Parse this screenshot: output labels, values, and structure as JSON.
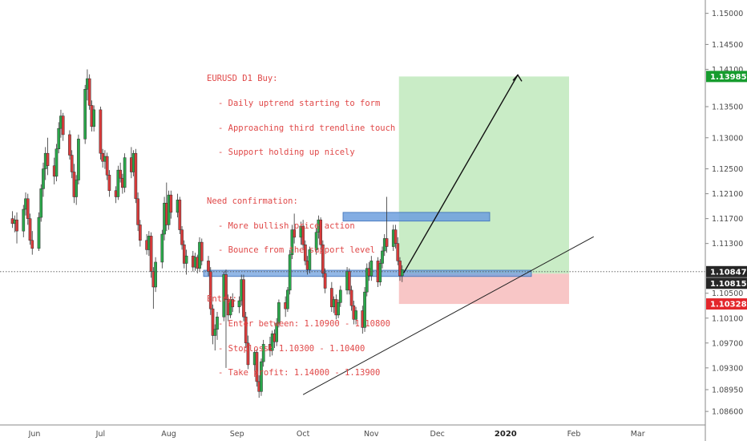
{
  "annotation": {
    "title": "EURUSD D1 Buy:",
    "points1": [
      "- Daily uptrend starting to form",
      "- Approaching third trendline touch",
      "- Support holding up nicely"
    ],
    "confirm_title": "Need confirmation:",
    "points2": [
      "- More bullish price action",
      "- Bounce from the support level"
    ],
    "entry_title": "Entry:",
    "points3": [
      "- Enter between: 1.10900 - 1.10800",
      "- Stoploss: 1.10300 - 1.10400",
      "- Take profit: 1.14000 - 1.13900"
    ]
  },
  "colors": {
    "up": "#2aa84a",
    "down": "#d93b3b",
    "annotation_text": "#e04848",
    "profit_zone": "#c9ecc6",
    "loss_zone": "#f8c6c6",
    "zone_box": "#6d9fde",
    "label_green": "#169c2e",
    "label_red": "#e3262b",
    "label_dark": "#262626"
  },
  "chart_data": {
    "type": "candlestick",
    "instrument": "EURUSD D1",
    "x_tick_labels": [
      "Jun",
      "Jul",
      "Aug",
      "Sep",
      "Oct",
      "Nov",
      "Dec",
      "2020",
      "Feb",
      "Mar"
    ],
    "y_tick_labels": [
      "1.15000",
      "1.14500",
      "1.14100",
      "1.13500",
      "1.13000",
      "1.12500",
      "1.12100",
      "1.11700",
      "1.11300",
      "1.10500",
      "1.10100",
      "1.09700",
      "1.09300",
      "1.08950",
      "1.08600"
    ],
    "ylim": [
      1.0855,
      1.1515
    ],
    "price_labels": [
      {
        "value": "1.13985",
        "price": 1.13985,
        "style": "green"
      },
      {
        "value": "1.10847",
        "price": 1.10847,
        "style": "dark"
      },
      {
        "value": "1.10815",
        "price": 1.10815,
        "style": "dark"
      },
      {
        "value": "1.10328",
        "price": 1.10328,
        "style": "red"
      }
    ],
    "current_price": 1.10847,
    "position": {
      "entry": 1.10815,
      "target": 1.13985,
      "stop": 1.10328
    },
    "resistance_zone": [
      1.1166,
      1.118
    ],
    "support_zone": [
      1.1077,
      1.1087
    ],
    "trendline": {
      "from": [
        "2019-10-01",
        1.0887
      ],
      "to": [
        "2020-02-10",
        1.1141
      ]
    },
    "grid": false,
    "candles": [
      [
        1.117,
        1.1182,
        1.1155,
        1.1162
      ],
      [
        1.1162,
        1.1175,
        1.1148,
        1.1168
      ],
      [
        1.1168,
        1.118,
        1.113,
        1.115
      ],
      [
        1.115,
        1.1192,
        1.114,
        1.1185
      ],
      [
        1.1185,
        1.1212,
        1.1175,
        1.1202
      ],
      [
        1.1202,
        1.121,
        1.116,
        1.117
      ],
      [
        1.117,
        1.1178,
        1.1128,
        1.1135
      ],
      [
        1.1135,
        1.115,
        1.1112,
        1.1122
      ],
      [
        1.1122,
        1.118,
        1.1118,
        1.1172
      ],
      [
        1.1172,
        1.1225,
        1.1165,
        1.1218
      ],
      [
        1.1218,
        1.126,
        1.1205,
        1.125
      ],
      [
        1.125,
        1.1285,
        1.1232,
        1.1275
      ],
      [
        1.1275,
        1.13,
        1.124,
        1.1255
      ],
      [
        1.1255,
        1.1268,
        1.1225,
        1.1238
      ],
      [
        1.1238,
        1.129,
        1.123,
        1.1282
      ],
      [
        1.1282,
        1.1325,
        1.1275,
        1.1315
      ],
      [
        1.1315,
        1.1345,
        1.13,
        1.1335
      ],
      [
        1.1335,
        1.134,
        1.1295,
        1.1305
      ],
      [
        1.1305,
        1.1312,
        1.1265,
        1.1272
      ],
      [
        1.1272,
        1.128,
        1.1235,
        1.1245
      ],
      [
        1.1245,
        1.1258,
        1.1195,
        1.1205
      ],
      [
        1.1205,
        1.124,
        1.1192,
        1.1232
      ],
      [
        1.1232,
        1.1305,
        1.1225,
        1.1298
      ],
      [
        1.1298,
        1.1385,
        1.129,
        1.1378
      ],
      [
        1.1378,
        1.141,
        1.136,
        1.1395
      ],
      [
        1.1395,
        1.1402,
        1.1345,
        1.1352
      ],
      [
        1.1352,
        1.136,
        1.131,
        1.1318
      ],
      [
        1.1318,
        1.1352,
        1.131,
        1.1345
      ],
      [
        1.1345,
        1.135,
        1.1265,
        1.1275
      ],
      [
        1.1275,
        1.1282,
        1.1252,
        1.1262
      ],
      [
        1.1262,
        1.128,
        1.125,
        1.127
      ],
      [
        1.127,
        1.1276,
        1.1232,
        1.124
      ],
      [
        1.124,
        1.1248,
        1.1205,
        1.1215
      ],
      [
        1.1215,
        1.1222,
        1.1195,
        1.1205
      ],
      [
        1.1205,
        1.1255,
        1.12,
        1.1248
      ],
      [
        1.1248,
        1.126,
        1.1228,
        1.1235
      ],
      [
        1.1235,
        1.1242,
        1.121,
        1.122
      ],
      [
        1.122,
        1.1275,
        1.1212,
        1.1268
      ],
      [
        1.1268,
        1.1285,
        1.1235,
        1.1245
      ],
      [
        1.1245,
        1.128,
        1.1238,
        1.1275
      ],
      [
        1.1275,
        1.1282,
        1.1195,
        1.1202
      ],
      [
        1.1202,
        1.1212,
        1.115,
        1.116
      ],
      [
        1.116,
        1.1168,
        1.1125,
        1.1135
      ],
      [
        1.1135,
        1.1145,
        1.1112,
        1.112
      ],
      [
        1.112,
        1.115,
        1.111,
        1.1142
      ],
      [
        1.1142,
        1.1148,
        1.1075,
        1.1085
      ],
      [
        1.1085,
        1.1092,
        1.1025,
        1.106
      ],
      [
        1.106,
        1.1108,
        1.1052,
        1.11
      ],
      [
        1.11,
        1.1152,
        1.109,
        1.1145
      ],
      [
        1.1145,
        1.1205,
        1.1135,
        1.1195
      ],
      [
        1.1195,
        1.1228,
        1.115,
        1.116
      ],
      [
        1.116,
        1.1215,
        1.1152,
        1.1208
      ],
      [
        1.1208,
        1.1215,
        1.117,
        1.118
      ],
      [
        1.118,
        1.121,
        1.1172,
        1.12
      ],
      [
        1.12,
        1.1205,
        1.1145,
        1.1152
      ],
      [
        1.1152,
        1.1158,
        1.112,
        1.1128
      ],
      [
        1.1128,
        1.1135,
        1.109,
        1.1098
      ],
      [
        1.1098,
        1.112,
        1.108,
        1.111
      ],
      [
        1.111,
        1.1118,
        1.1085,
        1.1092
      ],
      [
        1.1092,
        1.1115,
        1.1086,
        1.1108
      ],
      [
        1.1108,
        1.1112,
        1.1082,
        1.109
      ],
      [
        1.109,
        1.114,
        1.1085,
        1.1132
      ],
      [
        1.1132,
        1.1138,
        1.1095,
        1.1102
      ],
      [
        1.1102,
        1.111,
        1.1078,
        1.1085
      ],
      [
        1.1085,
        1.1092,
        1.1015,
        1.1025
      ],
      [
        1.1025,
        1.1032,
        1.0968,
        1.0982
      ],
      [
        1.0982,
        1.1,
        1.0958,
        1.0992
      ],
      [
        1.0992,
        1.102,
        1.0975,
        1.1012
      ],
      [
        1.1012,
        1.1085,
        1.1005,
        1.108
      ],
      [
        1.108,
        1.1088,
        1.093,
        1.104
      ],
      [
        1.104,
        1.1048,
        1.1005,
        1.1015
      ],
      [
        1.1015,
        1.1045,
        1.101,
        1.104
      ],
      [
        1.104,
        1.105,
        1.102,
        1.1028
      ],
      [
        1.1028,
        1.1045,
        1.1018,
        1.1038
      ],
      [
        1.1038,
        1.108,
        1.103,
        1.1072
      ],
      [
        1.1072,
        1.108,
        1.1005,
        1.1012
      ],
      [
        1.1012,
        1.102,
        1.0962,
        1.097
      ],
      [
        1.097,
        1.0982,
        1.0928,
        1.0935
      ],
      [
        1.0935,
        1.0962,
        1.0925,
        1.0955
      ],
      [
        1.0955,
        1.096,
        1.09,
        1.0908
      ],
      [
        1.0908,
        1.0918,
        1.0882,
        1.0892
      ],
      [
        1.0892,
        1.0945,
        1.0885,
        1.094
      ],
      [
        1.094,
        1.0975,
        1.0932,
        1.0968
      ],
      [
        1.0968,
        1.098,
        1.0948,
        1.0958
      ],
      [
        1.0958,
        1.099,
        1.095,
        1.0985
      ],
      [
        1.0985,
        1.0992,
        1.0962,
        1.0972
      ],
      [
        1.0972,
        1.101,
        1.0965,
        1.1002
      ],
      [
        1.1002,
        1.104,
        1.0995,
        1.1035
      ],
      [
        1.1035,
        1.1045,
        1.1012,
        1.1025
      ],
      [
        1.1025,
        1.106,
        1.102,
        1.1055
      ],
      [
        1.1055,
        1.112,
        1.1048,
        1.1112
      ],
      [
        1.1112,
        1.116,
        1.1105,
        1.1152
      ],
      [
        1.1152,
        1.1178,
        1.113,
        1.114
      ],
      [
        1.114,
        1.1165,
        1.1128,
        1.1158
      ],
      [
        1.1158,
        1.1168,
        1.112,
        1.1128
      ],
      [
        1.1128,
        1.1135,
        1.1095,
        1.1102
      ],
      [
        1.1102,
        1.111,
        1.108,
        1.1088
      ],
      [
        1.1088,
        1.1125,
        1.1082,
        1.112
      ],
      [
        1.112,
        1.1155,
        1.1112,
        1.1148
      ],
      [
        1.1148,
        1.1175,
        1.1138,
        1.1168
      ],
      [
        1.1168,
        1.1172,
        1.112,
        1.1128
      ],
      [
        1.1128,
        1.1135,
        1.1075,
        1.1082
      ],
      [
        1.1082,
        1.109,
        1.105,
        1.1058
      ],
      [
        1.1058,
        1.1068,
        1.102,
        1.1028
      ],
      [
        1.1028,
        1.1045,
        1.1018,
        1.104
      ],
      [
        1.104,
        1.1048,
        1.1008,
        1.1015
      ],
      [
        1.1015,
        1.104,
        1.101,
        1.1035
      ],
      [
        1.1035,
        1.1062,
        1.1028,
        1.1055
      ],
      [
        1.1055,
        1.1092,
        1.1048,
        1.1085
      ],
      [
        1.1085,
        1.109,
        1.1048,
        1.1055
      ],
      [
        1.1055,
        1.1062,
        1.1022,
        1.103
      ],
      [
        1.103,
        1.1038,
        1.1,
        1.1008
      ],
      [
        1.1008,
        1.1028,
        1.1,
        1.1022
      ],
      [
        1.1022,
        1.103,
        1.0985,
        1.0995
      ],
      [
        1.0995,
        1.106,
        1.0988,
        1.1052
      ],
      [
        1.1052,
        1.1098,
        1.1045,
        1.109
      ],
      [
        1.109,
        1.11,
        1.107,
        1.1078
      ],
      [
        1.1078,
        1.111,
        1.107,
        1.1102
      ],
      [
        1.1102,
        1.1108,
        1.106,
        1.1068
      ],
      [
        1.1068,
        1.1105,
        1.1062,
        1.1098
      ],
      [
        1.1098,
        1.1125,
        1.109,
        1.1118
      ],
      [
        1.1118,
        1.1145,
        1.111,
        1.1138
      ],
      [
        1.1138,
        1.1205,
        1.1115,
        1.1125
      ],
      [
        1.1125,
        1.116,
        1.1118,
        1.1152
      ],
      [
        1.1152,
        1.116,
        1.1122,
        1.113
      ],
      [
        1.113,
        1.114,
        1.1095,
        1.1102
      ],
      [
        1.1102,
        1.1108,
        1.107,
        1.1078
      ],
      [
        1.1078,
        1.1095,
        1.1068,
        1.1088
      ]
    ]
  }
}
